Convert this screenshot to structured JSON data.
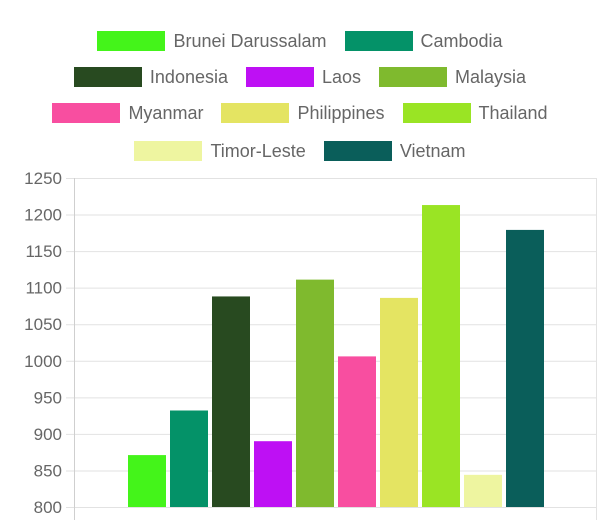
{
  "chart_data": {
    "type": "bar",
    "title": "",
    "xlabel": "",
    "ylabel": "",
    "ylim": [
      800,
      1250
    ],
    "yticks": [
      800,
      850,
      900,
      950,
      1000,
      1050,
      1100,
      1150,
      1200,
      1250
    ],
    "grid": true,
    "legend_position": "top",
    "categories": [
      ""
    ],
    "series": [
      {
        "name": "Brunei Darussalam",
        "color": "#44f41a",
        "values": [
          871
        ]
      },
      {
        "name": "Cambodia",
        "color": "#049268",
        "values": [
          932
        ]
      },
      {
        "name": "Indonesia",
        "color": "#284a20",
        "values": [
          1088
        ]
      },
      {
        "name": "Laos",
        "color": "#be10f4",
        "values": [
          890
        ]
      },
      {
        "name": "Malaysia",
        "color": "#7fba2e",
        "values": [
          1111
        ]
      },
      {
        "name": "Myanmar",
        "color": "#f84ea0",
        "values": [
          1006
        ]
      },
      {
        "name": "Philippines",
        "color": "#e4e462",
        "values": [
          1086
        ]
      },
      {
        "name": "Thailand",
        "color": "#9ae424",
        "values": [
          1213
        ]
      },
      {
        "name": "Timor-Leste",
        "color": "#eef5a0",
        "values": [
          844
        ]
      },
      {
        "name": "Vietnam",
        "color": "#0a5e5a",
        "values": [
          1179
        ]
      }
    ]
  }
}
